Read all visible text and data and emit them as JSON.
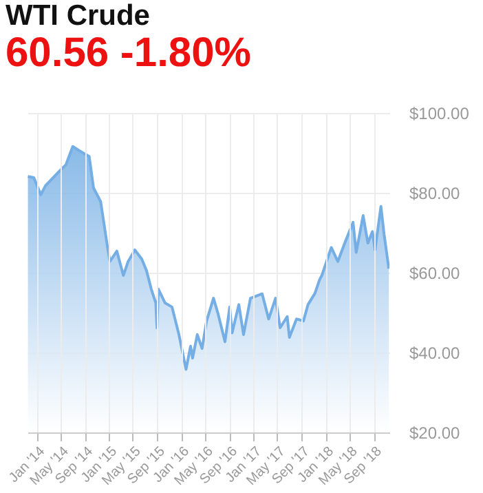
{
  "chart_data": {
    "type": "area",
    "title": "WTI Crude",
    "subtitle": "60.56 -1.80%",
    "x": [
      "2013-11-17",
      "2013-12-17",
      "2014-01-21",
      "2014-02-14",
      "2014-04-23",
      "2014-05-28",
      "2014-07-02",
      "2014-08-06",
      "2014-09-23",
      "2014-10-15",
      "2014-11-20",
      "2014-12-25",
      "2015-01-06",
      "2015-02-10",
      "2015-03-15",
      "2015-04-08",
      "2015-05-12",
      "2015-06-16",
      "2015-07-10",
      "2015-08-03",
      "2015-08-26",
      "2015-09-01",
      "2015-09-08",
      "2015-10-12",
      "2015-11-16",
      "2015-12-21",
      "2016-01-26",
      "2016-02-18",
      "2016-02-28",
      "2016-03-23",
      "2016-04-16",
      "2016-05-09",
      "2016-06-13",
      "2016-07-06",
      "2016-08-10",
      "2016-09-03",
      "2016-09-15",
      "2016-10-19",
      "2016-11-12",
      "2016-12-17",
      "2017-02-14",
      "2017-03-19",
      "2017-04-23",
      "2017-05-16",
      "2017-06-21",
      "2017-07-02",
      "2017-08-07",
      "2017-09-11",
      "2017-10-04",
      "2017-11-08",
      "2017-12-02",
      "2017-12-13",
      "2018-01-30",
      "2018-03-04",
      "2018-04-08",
      "2018-05-20",
      "2018-06-05",
      "2018-07-10",
      "2018-08-03",
      "2018-08-26",
      "2018-09-08",
      "2018-10-08",
      "2018-10-24",
      "2018-11-17"
    ],
    "series": [
      {
        "color": "#74aee4",
        "values": [
          84.1,
          83.8,
          79.5,
          81.8,
          85.3,
          87,
          91.6,
          90.5,
          89.1,
          81.2,
          77.8,
          66.3,
          62.8,
          65.4,
          59.3,
          62.8,
          65.7,
          63.4,
          60.5,
          55.9,
          52.4,
          46.2,
          55.9,
          52.4,
          51.4,
          44.5,
          35.8,
          41.6,
          38.6,
          44.5,
          41,
          47.9,
          53.6,
          49.7,
          42.7,
          51.4,
          44.9,
          52,
          44.5,
          53.6,
          54.7,
          48.4,
          53.6,
          46.2,
          49,
          43.8,
          48.4,
          47.9,
          52,
          54.8,
          58.3,
          59.3,
          66.3,
          62.8,
          67.4,
          72.6,
          65.1,
          74.3,
          67.4,
          70.3,
          65.7,
          76.6,
          69.6,
          61
        ]
      }
    ],
    "xlim": [
      "2013-11-15",
      "2018-11-20"
    ],
    "xticks": [
      {
        "value": "2014-01-01",
        "label": "Jan '14"
      },
      {
        "value": "2014-05-01",
        "label": "May '14"
      },
      {
        "value": "2014-09-01",
        "label": "Sep '14"
      },
      {
        "value": "2015-01-01",
        "label": "Jan '15"
      },
      {
        "value": "2015-05-01",
        "label": "May '15"
      },
      {
        "value": "2015-09-01",
        "label": "Sep '15"
      },
      {
        "value": "2016-01-01",
        "label": "Jan '16"
      },
      {
        "value": "2016-05-01",
        "label": "May '16"
      },
      {
        "value": "2016-09-01",
        "label": "Sep '16"
      },
      {
        "value": "2017-01-01",
        "label": "Jan '17"
      },
      {
        "value": "2017-05-01",
        "label": "May '17"
      },
      {
        "value": "2017-09-01",
        "label": "Sep '17"
      },
      {
        "value": "2018-01-01",
        "label": "Jan '18"
      },
      {
        "value": "2018-05-01",
        "label": "May '18"
      },
      {
        "value": "2018-09-01",
        "label": "Sep '18"
      }
    ],
    "ylim": [
      20,
      100
    ],
    "yticks": [
      {
        "value": 20,
        "label": "$20.00"
      },
      {
        "value": 40,
        "label": "$40.00"
      },
      {
        "value": 60,
        "label": "$60.00"
      },
      {
        "value": 80,
        "label": "$80.00"
      },
      {
        "value": 100,
        "label": "$100.00"
      }
    ],
    "grid": true
  }
}
